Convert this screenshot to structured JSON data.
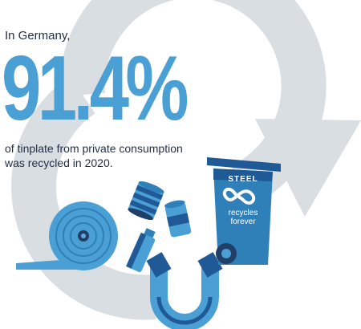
{
  "headline": {
    "intro": "In Germany,",
    "percentage": "91.4%",
    "description_line1": "of tinplate from private consumption",
    "description_line2": "was recycled in 2020."
  },
  "bin_label": {
    "top": "STEEL",
    "line1": "recycles",
    "line2": "forever"
  },
  "colors": {
    "arrow": "#d9dee2",
    "accent": "#4a9fd4",
    "dark_blue": "#1f5a96",
    "text": "#1f2d44"
  },
  "icons": [
    "recycle-arrow-icon",
    "steel-coil-icon",
    "tin-can-icon",
    "spray-can-icon",
    "magnet-icon",
    "recycling-bin-icon",
    "infinity-icon"
  ]
}
